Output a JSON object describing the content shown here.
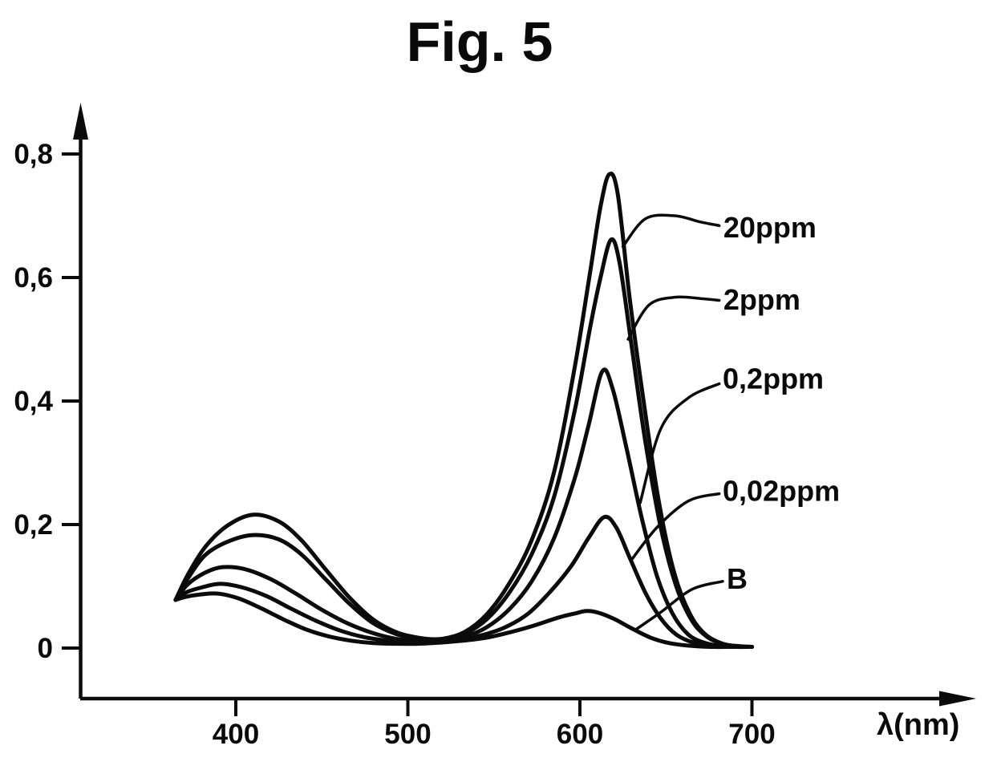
{
  "figure": {
    "title": "Fig. 5"
  },
  "chart_data": {
    "type": "line",
    "title": "Fig. 5",
    "xlabel": "λ(nm)",
    "ylabel": "",
    "x_unit": "nm",
    "decimal_separator": ",",
    "grid": false,
    "legend_position": "right-side-leader-labels",
    "line_color": "#0b0b0b",
    "background_color": "#ffffff",
    "xlim": [
      310,
      830
    ],
    "ylim": [
      0,
      0.88
    ],
    "x_axis_ticks": [
      {
        "value": 400,
        "label": "400"
      },
      {
        "value": 500,
        "label": "500"
      },
      {
        "value": 600,
        "label": "600"
      },
      {
        "value": 700,
        "label": "700"
      }
    ],
    "y_axis_ticks": [
      {
        "value": 0.8,
        "label": "0,8"
      },
      {
        "value": 0.6,
        "label": "0,6"
      },
      {
        "value": 0.4,
        "label": "0,4"
      },
      {
        "value": 0.2,
        "label": "0,2"
      },
      {
        "value": 0,
        "label": "0"
      }
    ],
    "series": [
      {
        "name": "20ppm",
        "points": [
          [
            365,
            0.078
          ],
          [
            372,
            0.118
          ],
          [
            382,
            0.163
          ],
          [
            395,
            0.198
          ],
          [
            410,
            0.216
          ],
          [
            425,
            0.205
          ],
          [
            438,
            0.175
          ],
          [
            452,
            0.128
          ],
          [
            466,
            0.082
          ],
          [
            480,
            0.046
          ],
          [
            494,
            0.025
          ],
          [
            508,
            0.016
          ],
          [
            520,
            0.015
          ],
          [
            533,
            0.026
          ],
          [
            546,
            0.055
          ],
          [
            559,
            0.105
          ],
          [
            572,
            0.175
          ],
          [
            585,
            0.285
          ],
          [
            597,
            0.455
          ],
          [
            606,
            0.61
          ],
          [
            612,
            0.715
          ],
          [
            617,
            0.767
          ],
          [
            622,
            0.735
          ],
          [
            629,
            0.565
          ],
          [
            637,
            0.4
          ],
          [
            646,
            0.235
          ],
          [
            655,
            0.12
          ],
          [
            664,
            0.055
          ],
          [
            673,
            0.022
          ],
          [
            683,
            0.007
          ],
          [
            692,
            0.003
          ],
          [
            700,
            0.002
          ]
        ]
      },
      {
        "name": "2ppm",
        "points": [
          [
            365,
            0.078
          ],
          [
            372,
            0.112
          ],
          [
            382,
            0.15
          ],
          [
            395,
            0.172
          ],
          [
            410,
            0.183
          ],
          [
            425,
            0.176
          ],
          [
            438,
            0.152
          ],
          [
            452,
            0.112
          ],
          [
            466,
            0.072
          ],
          [
            480,
            0.04
          ],
          [
            494,
            0.022
          ],
          [
            508,
            0.014
          ],
          [
            520,
            0.013
          ],
          [
            533,
            0.023
          ],
          [
            546,
            0.047
          ],
          [
            559,
            0.09
          ],
          [
            572,
            0.152
          ],
          [
            585,
            0.245
          ],
          [
            597,
            0.385
          ],
          [
            606,
            0.52
          ],
          [
            612,
            0.6
          ],
          [
            618,
            0.661
          ],
          [
            623,
            0.625
          ],
          [
            630,
            0.49
          ],
          [
            638,
            0.335
          ],
          [
            647,
            0.195
          ],
          [
            656,
            0.1
          ],
          [
            665,
            0.045
          ],
          [
            674,
            0.018
          ],
          [
            684,
            0.006
          ],
          [
            693,
            0.003
          ],
          [
            700,
            0.002
          ]
        ]
      },
      {
        "name": "0,2ppm",
        "points": [
          [
            365,
            0.078
          ],
          [
            372,
            0.103
          ],
          [
            382,
            0.122
          ],
          [
            392,
            0.131
          ],
          [
            405,
            0.128
          ],
          [
            420,
            0.112
          ],
          [
            435,
            0.088
          ],
          [
            450,
            0.062
          ],
          [
            465,
            0.04
          ],
          [
            480,
            0.024
          ],
          [
            495,
            0.014
          ],
          [
            508,
            0.011
          ],
          [
            520,
            0.011
          ],
          [
            533,
            0.018
          ],
          [
            546,
            0.034
          ],
          [
            559,
            0.063
          ],
          [
            572,
            0.108
          ],
          [
            585,
            0.178
          ],
          [
            597,
            0.275
          ],
          [
            605,
            0.36
          ],
          [
            613,
            0.448
          ],
          [
            619,
            0.42
          ],
          [
            627,
            0.325
          ],
          [
            636,
            0.21
          ],
          [
            645,
            0.115
          ],
          [
            654,
            0.055
          ],
          [
            663,
            0.022
          ],
          [
            673,
            0.008
          ],
          [
            684,
            0.003
          ],
          [
            700,
            0.002
          ]
        ]
      },
      {
        "name": "0,02ppm",
        "points": [
          [
            365,
            0.078
          ],
          [
            371,
            0.09
          ],
          [
            380,
            0.098
          ],
          [
            391,
            0.104
          ],
          [
            404,
            0.098
          ],
          [
            418,
            0.084
          ],
          [
            432,
            0.064
          ],
          [
            446,
            0.045
          ],
          [
            460,
            0.029
          ],
          [
            474,
            0.018
          ],
          [
            488,
            0.012
          ],
          [
            502,
            0.009
          ],
          [
            515,
            0.009
          ],
          [
            528,
            0.012
          ],
          [
            542,
            0.02
          ],
          [
            556,
            0.033
          ],
          [
            570,
            0.056
          ],
          [
            583,
            0.092
          ],
          [
            595,
            0.133
          ],
          [
            605,
            0.178
          ],
          [
            614,
            0.212
          ],
          [
            621,
            0.196
          ],
          [
            629,
            0.146
          ],
          [
            638,
            0.09
          ],
          [
            647,
            0.048
          ],
          [
            656,
            0.022
          ],
          [
            666,
            0.009
          ],
          [
            678,
            0.004
          ],
          [
            690,
            0.002
          ],
          [
            700,
            0.002
          ]
        ]
      },
      {
        "name": "B",
        "points": [
          [
            365,
            0.078
          ],
          [
            371,
            0.083
          ],
          [
            380,
            0.087
          ],
          [
            390,
            0.088
          ],
          [
            402,
            0.08
          ],
          [
            415,
            0.064
          ],
          [
            428,
            0.046
          ],
          [
            441,
            0.03
          ],
          [
            454,
            0.019
          ],
          [
            467,
            0.012
          ],
          [
            480,
            0.008
          ],
          [
            493,
            0.007
          ],
          [
            506,
            0.007
          ],
          [
            519,
            0.009
          ],
          [
            532,
            0.012
          ],
          [
            546,
            0.017
          ],
          [
            560,
            0.026
          ],
          [
            574,
            0.037
          ],
          [
            587,
            0.049
          ],
          [
            597,
            0.056
          ],
          [
            604,
            0.06
          ],
          [
            611,
            0.057
          ],
          [
            620,
            0.047
          ],
          [
            630,
            0.032
          ],
          [
            641,
            0.017
          ],
          [
            652,
            0.008
          ],
          [
            663,
            0.004
          ],
          [
            676,
            0.002
          ],
          [
            690,
            0.002
          ],
          [
            700,
            0.002
          ]
        ]
      }
    ],
    "annotations": [
      {
        "label": "20ppm",
        "label_pos": [
          683.4,
          0.665
        ],
        "leader": [
          [
            625,
            0.65
          ],
          [
            638,
            0.695
          ],
          [
            655,
            0.7
          ],
          [
            670,
            0.69
          ],
          [
            681,
            0.684
          ]
        ]
      },
      {
        "label": "2ppm",
        "label_pos": [
          683.4,
          0.548
        ],
        "leader": [
          [
            628,
            0.5
          ],
          [
            640,
            0.555
          ],
          [
            655,
            0.568
          ],
          [
            670,
            0.566
          ],
          [
            681,
            0.563
          ]
        ]
      },
      {
        "label": "0,2ppm",
        "label_pos": [
          683.0,
          0.42
        ],
        "leader": [
          [
            635,
            0.235
          ],
          [
            647,
            0.355
          ],
          [
            663,
            0.405
          ],
          [
            681,
            0.428
          ]
        ]
      },
      {
        "label": "0,02ppm",
        "label_pos": [
          683.0,
          0.238
        ],
        "leader": [
          [
            630,
            0.143
          ],
          [
            645,
            0.196
          ],
          [
            663,
            0.238
          ],
          [
            681,
            0.25
          ]
        ]
      },
      {
        "label": "B",
        "label_pos": [
          685.3,
          0.096
        ],
        "leader": [
          [
            632,
            0.029
          ],
          [
            647,
            0.058
          ],
          [
            665,
            0.095
          ],
          [
            683,
            0.108
          ]
        ]
      }
    ]
  }
}
